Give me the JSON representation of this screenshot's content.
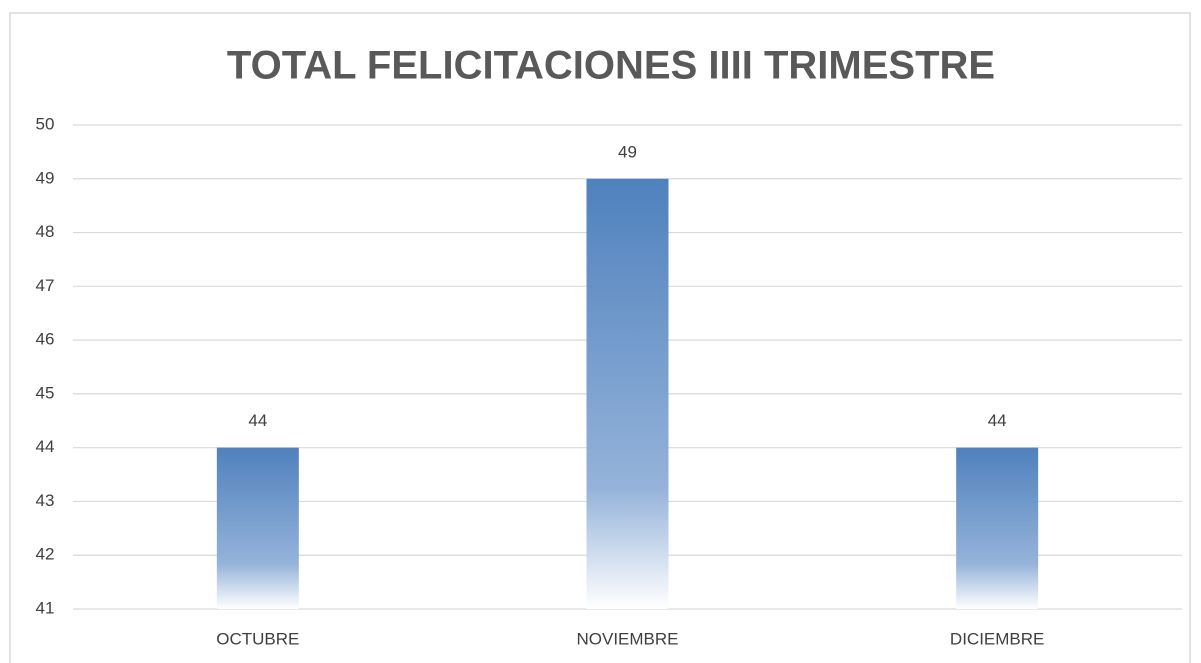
{
  "chart_data": {
    "type": "bar",
    "title": "TOTAL FELICITACIONES IIII TRIMESTRE",
    "categories": [
      "OCTUBRE",
      "NOVIEMBRE",
      "DICIEMBRE"
    ],
    "values": [
      44,
      49,
      44
    ],
    "color": "#4f81bd",
    "ylim": [
      41,
      50
    ],
    "yticks": [
      41,
      42,
      43,
      44,
      45,
      46,
      47,
      48,
      49,
      50
    ],
    "grid": true
  }
}
